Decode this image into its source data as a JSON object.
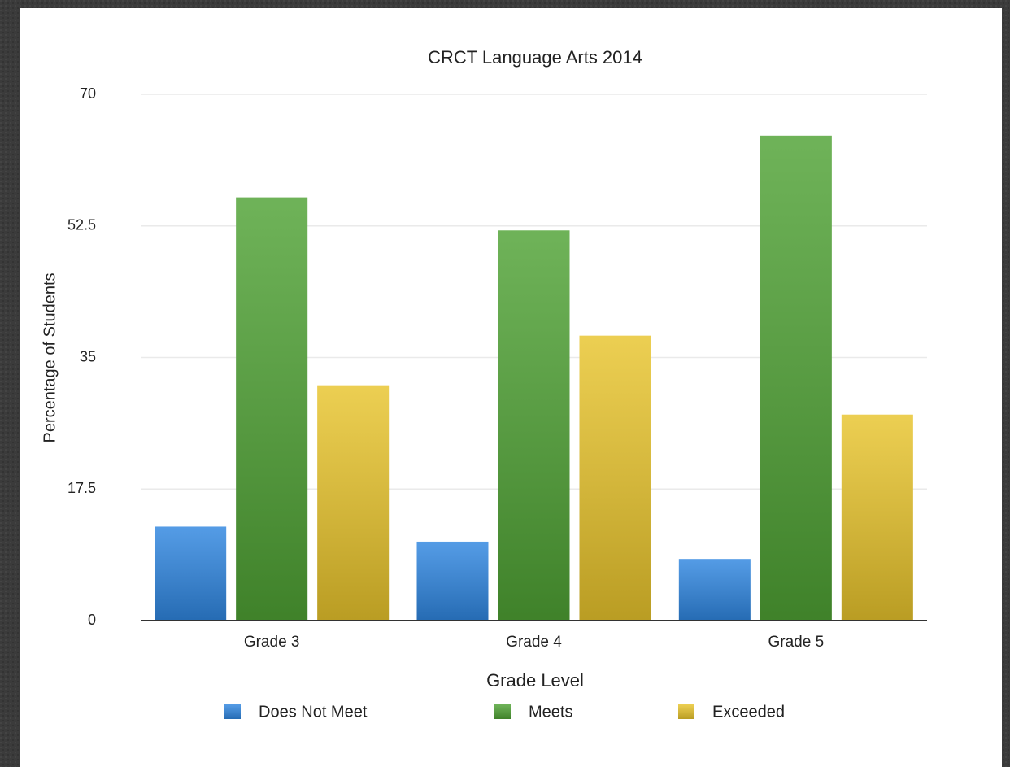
{
  "chart_data": {
    "type": "bar",
    "title": "CRCT Language Arts 2014",
    "x_label": "Grade Level",
    "y_label": "Percentage of Students",
    "categories": [
      "Grade 3",
      "Grade 4",
      "Grade 5"
    ],
    "series": [
      {
        "name": "Does Not Meet",
        "color": "#2f86e0",
        "values": [
          12.5,
          10.5,
          8.2
        ]
      },
      {
        "name": "Meets",
        "color": "#4fa234",
        "values": [
          56.3,
          51.9,
          64.5
        ]
      },
      {
        "name": "Exceeded",
        "color": "#e8c42c",
        "values": [
          31.3,
          37.9,
          27.4
        ]
      }
    ],
    "ylim": [
      0,
      70
    ],
    "yticks": [
      0,
      17.5,
      35,
      52.5,
      70
    ],
    "grid": true,
    "legend": "bottom"
  }
}
